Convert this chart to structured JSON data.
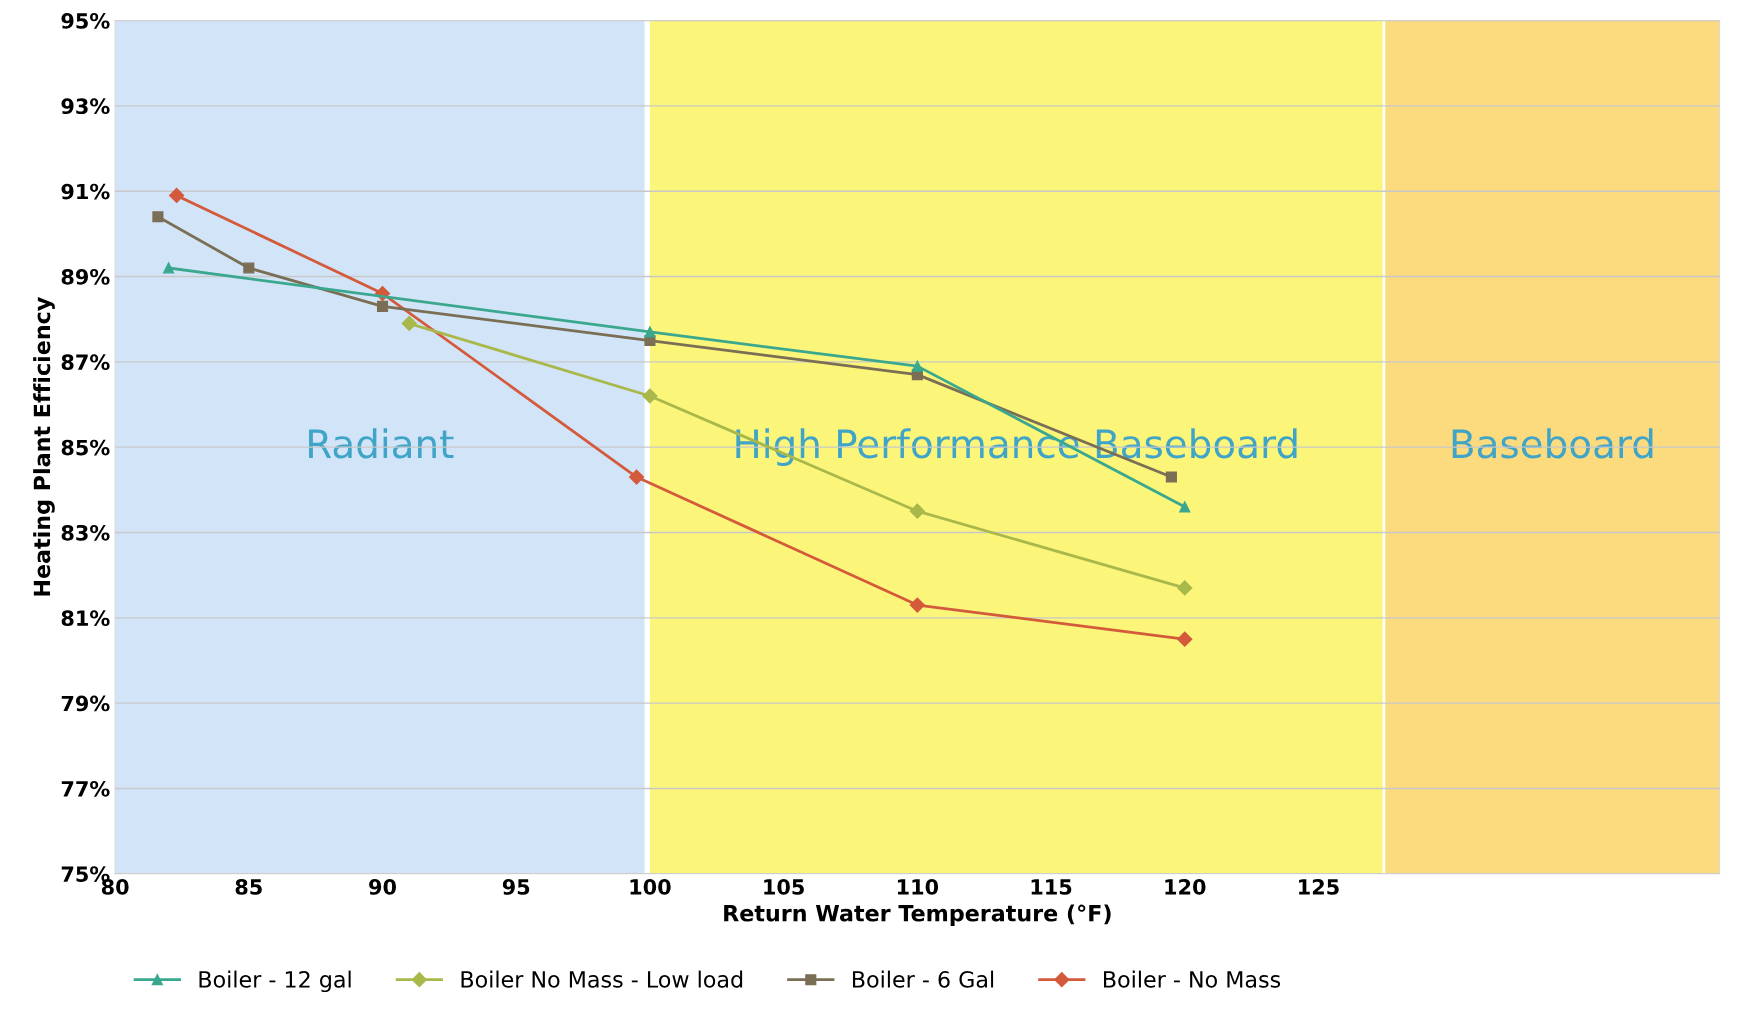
{
  "chart_data": {
    "type": "line",
    "xlabel": "Return Water Temperature (°F)",
    "ylabel": "Heating Plant Efficiency",
    "xlim": [
      80,
      140
    ],
    "xticks": [
      80,
      85,
      90,
      95,
      100,
      105,
      110,
      115,
      120,
      125
    ],
    "ylim": [
      75,
      95
    ],
    "yticks": [
      {
        "value": 75,
        "label": "75%"
      },
      {
        "value": 77,
        "label": "77%"
      },
      {
        "value": 79,
        "label": "79%"
      },
      {
        "value": 81,
        "label": "81%"
      },
      {
        "value": 83,
        "label": "83%"
      },
      {
        "value": 85,
        "label": "85%"
      },
      {
        "value": 87,
        "label": "87%"
      },
      {
        "value": 89,
        "label": "89%"
      },
      {
        "value": 91,
        "label": "91%"
      },
      {
        "value": 93,
        "label": "93%"
      },
      {
        "value": 95,
        "label": "95%"
      }
    ],
    "grid": "y",
    "legend": "bottom",
    "bands": [
      {
        "axis": "x",
        "from": 80,
        "to": 99.8,
        "label": "Radiant",
        "color": "#d2e5f8"
      },
      {
        "axis": "x",
        "from": 100,
        "to": 127.4,
        "label": "High Performance Baseboard",
        "color": "#fbf57a"
      },
      {
        "axis": "x",
        "from": 127.5,
        "to": 140,
        "label": "Baseboard",
        "color": "#fbdb7e"
      }
    ],
    "series": [
      {
        "name": "Boiler - 12 gal",
        "color": "#3aa88f",
        "marker": "triangle",
        "x": [
          82,
          100,
          110,
          120
        ],
        "values": [
          89.2,
          87.7,
          86.9,
          83.6
        ]
      },
      {
        "name": "Boiler No Mass - Low load",
        "color": "#a8b84a",
        "marker": "diamond",
        "x": [
          91,
          100,
          110,
          120
        ],
        "values": [
          87.9,
          86.2,
          83.5,
          81.7
        ]
      },
      {
        "name": "Boiler - 6 Gal",
        "color": "#7a6e55",
        "marker": "square",
        "x": [
          81.6,
          85,
          90,
          100,
          110,
          119.5
        ],
        "values": [
          90.4,
          89.2,
          88.3,
          87.5,
          86.7,
          84.3
        ]
      },
      {
        "name": "Boiler - No Mass",
        "color": "#d45a3c",
        "marker": "diamond",
        "x": [
          82.3,
          90,
          99.5,
          110,
          120
        ],
        "values": [
          90.9,
          88.6,
          84.3,
          81.3,
          80.5
        ]
      }
    ]
  }
}
